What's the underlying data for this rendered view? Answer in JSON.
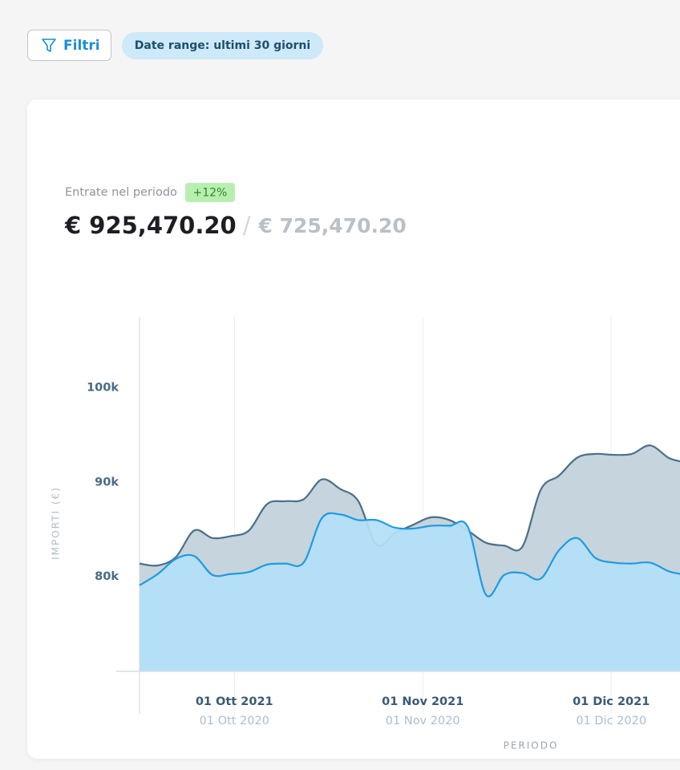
{
  "toolbar": {
    "filter_button": "Filtri",
    "date_range": "Date range: ultimi 30 giorni"
  },
  "summary": {
    "label": "Entrate nel periodo",
    "change": "+12%",
    "current": "€ 925,470.20",
    "separator": "/",
    "previous": "€ 725,470.20"
  },
  "chart_data": {
    "type": "area",
    "x_label": "PERIODO",
    "y_label": "IMPORTI (€)",
    "x": [
      0,
      3,
      6,
      9,
      12,
      15,
      18,
      21,
      24,
      27,
      30,
      33,
      36,
      39,
      42,
      45,
      48,
      51,
      54,
      57,
      60,
      63,
      66,
      69,
      72,
      75,
      78,
      81,
      84,
      87,
      89
    ],
    "series": [
      {
        "color": "#4a6f8a",
        "fill": "#c6d4dd",
        "values": [
          81400,
          81200,
          82100,
          84900,
          84100,
          84300,
          84900,
          87700,
          88000,
          88200,
          90300,
          89300,
          88000,
          83400,
          84600,
          85500,
          86300,
          86000,
          84900,
          83600,
          83300,
          83200,
          89200,
          90700,
          92600,
          93000,
          92900,
          93000,
          93900,
          92600,
          92200
        ]
      },
      {
        "color": "#1e9be0",
        "fill": "#b3e0f8",
        "values": [
          79100,
          80300,
          81900,
          82200,
          80200,
          80300,
          80500,
          81300,
          81400,
          81500,
          86200,
          86600,
          86000,
          86000,
          85200,
          85100,
          85400,
          85400,
          85300,
          78100,
          80200,
          80400,
          79800,
          82800,
          84100,
          82000,
          81500,
          81400,
          81500,
          80600,
          80300
        ]
      }
    ],
    "xlim": [
      0,
      89
    ],
    "xticks": [
      {
        "value": 15.6,
        "label": "01 Ott 2021"
      },
      {
        "value": 46.6,
        "label": "01 Nov 2021"
      },
      {
        "value": 77.6,
        "label": "01 Dic 2021"
      }
    ],
    "xticks_secondary": [
      {
        "value": 15.6,
        "label": "01 Ott 2020"
      },
      {
        "value": 46.6,
        "label": "01 Nov 2020"
      },
      {
        "value": 77.6,
        "label": "01 Dic 2020"
      }
    ],
    "ylim": [
      70000,
      107500
    ],
    "yticks": [
      {
        "value": 80000,
        "label": "80k"
      },
      {
        "value": 90000,
        "label": "90k"
      },
      {
        "value": 100000,
        "label": "100k"
      }
    ],
    "grid": "x"
  }
}
